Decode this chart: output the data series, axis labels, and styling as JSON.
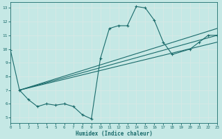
{
  "xlabel": "Humidex (Indice chaleur)",
  "ylabel": "",
  "xlim": [
    0,
    23
  ],
  "ylim": [
    4.6,
    13.4
  ],
  "xticks": [
    0,
    1,
    2,
    3,
    4,
    5,
    6,
    7,
    8,
    9,
    10,
    11,
    12,
    13,
    14,
    15,
    16,
    17,
    18,
    19,
    20,
    21,
    22,
    23
  ],
  "yticks": [
    5,
    6,
    7,
    8,
    9,
    10,
    11,
    12,
    13
  ],
  "bg_color": "#c5e8e5",
  "line_color": "#1a6b6b",
  "grid_color": "#e0f0f0",
  "main_line": {
    "x": [
      0,
      1,
      2,
      3,
      4,
      5,
      6,
      7,
      8,
      9,
      10,
      11,
      12,
      13,
      14,
      15,
      16,
      17,
      18,
      20,
      21,
      22,
      23
    ],
    "y": [
      9.9,
      7.0,
      6.3,
      5.8,
      6.0,
      5.9,
      6.0,
      5.8,
      5.2,
      4.9,
      9.3,
      11.5,
      11.7,
      11.7,
      13.1,
      13.0,
      12.1,
      10.5,
      9.6,
      10.0,
      10.5,
      11.0,
      11.0
    ]
  },
  "trend_lines": [
    {
      "x0": 1,
      "y0": 7.0,
      "x1": 23,
      "y1": 10.5
    },
    {
      "x0": 1,
      "y0": 7.0,
      "x1": 23,
      "y1": 11.0
    },
    {
      "x0": 1,
      "y0": 7.0,
      "x1": 23,
      "y1": 11.5
    }
  ]
}
